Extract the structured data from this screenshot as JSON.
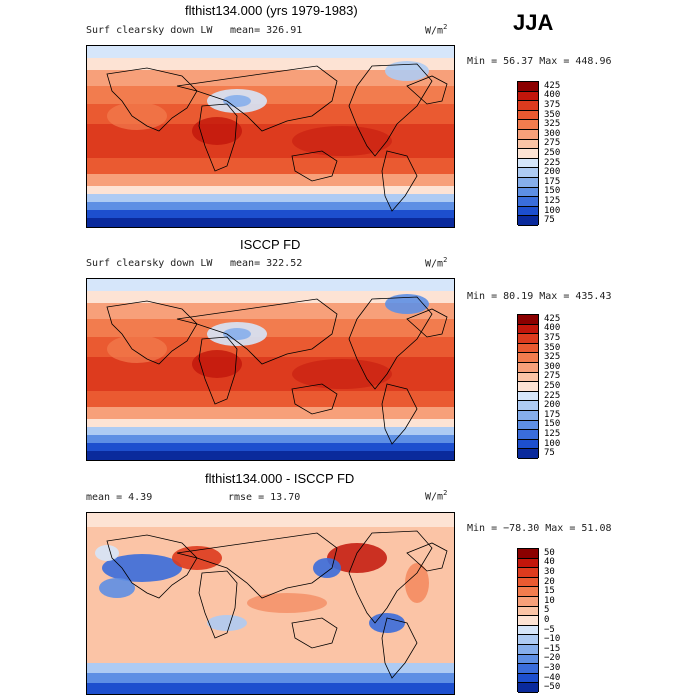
{
  "season_label": "JJA",
  "units_label": "W/m",
  "units_exponent": "2",
  "chart_data": [
    {
      "type": "heatmap",
      "title": "flthist134.000 (yrs 1979-1983)",
      "variable_label": "Surf clearsky down LW",
      "mean_text": "mean= 326.91",
      "minmax_text": "Min =  56.37 Max = 448.96",
      "stats": {
        "mean": 326.91,
        "min": 56.37,
        "max": 448.96
      },
      "legend_levels": [
        425,
        400,
        375,
        350,
        325,
        300,
        275,
        250,
        225,
        200,
        175,
        150,
        125,
        100,
        75
      ],
      "legend_colors": [
        "#8b0000",
        "#c2160b",
        "#dd3b1e",
        "#ea5a31",
        "#f27c4e",
        "#f7a07a",
        "#fbc4a6",
        "#fde3d4",
        "#d6e6fa",
        "#aecbf3",
        "#86aeeb",
        "#5e8fe4",
        "#3a6ddb",
        "#1d4fce",
        "#0a2a9c"
      ],
      "field": "absolute"
    },
    {
      "type": "heatmap",
      "title": "ISCCP FD",
      "variable_label": "Surf clearsky down LW",
      "mean_text": "mean= 322.52",
      "minmax_text": "Min =  80.19 Max = 435.43",
      "stats": {
        "mean": 322.52,
        "min": 80.19,
        "max": 435.43
      },
      "legend_levels": [
        425,
        400,
        375,
        350,
        325,
        300,
        275,
        250,
        225,
        200,
        175,
        150,
        125,
        100,
        75
      ],
      "legend_colors": [
        "#8b0000",
        "#c2160b",
        "#dd3b1e",
        "#ea5a31",
        "#f27c4e",
        "#f7a07a",
        "#fbc4a6",
        "#fde3d4",
        "#d6e6fa",
        "#aecbf3",
        "#86aeeb",
        "#5e8fe4",
        "#3a6ddb",
        "#1d4fce",
        "#0a2a9c"
      ],
      "field": "absolute"
    },
    {
      "type": "heatmap",
      "title": "flthist134.000 - ISCCP FD",
      "mean_text": "mean =    4.39",
      "rmse_text": "rmse =   13.70",
      "minmax_text": "Min = −78.30 Max =   51.08",
      "stats": {
        "mean": 4.39,
        "rmse": 13.7,
        "min": -78.3,
        "max": 51.08
      },
      "legend_levels": [
        "50",
        "40",
        "30",
        "20",
        "15",
        "10",
        "5",
        "0",
        "−5",
        "−10",
        "−15",
        "−20",
        "−30",
        "−40",
        "−50"
      ],
      "legend_colors": [
        "#8b0000",
        "#c2160b",
        "#dd3b1e",
        "#ea5a31",
        "#f27c4e",
        "#f7a07a",
        "#fbc4a6",
        "#fde3d4",
        "#d6e6fa",
        "#aecbf3",
        "#86aeeb",
        "#5e8fe4",
        "#3a6ddb",
        "#1d4fce",
        "#0a2a9c"
      ],
      "field": "difference"
    }
  ]
}
